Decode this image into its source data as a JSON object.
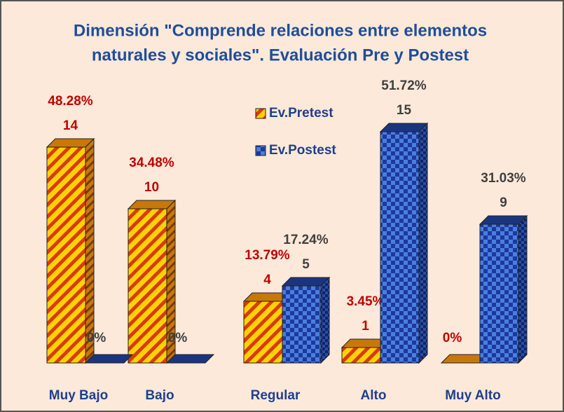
{
  "chart_data": {
    "type": "bar3d",
    "title": [
      "Dimensión \"Comprende relaciones entre elementos",
      "naturales y sociales\". Evaluación  Pre y Postest"
    ],
    "categories": [
      "Muy Bajo",
      "Bajo",
      "Regular",
      "Alto",
      "Muy Alto"
    ],
    "series": [
      {
        "name": "Ev.Pretest",
        "color": "#f5b400",
        "values": [
          14,
          10,
          4,
          1,
          0
        ],
        "percentages": [
          48.28,
          34.48,
          13.79,
          3.45,
          0
        ],
        "percentage_labels": [
          "48.28%",
          "34.48%",
          "13.79%",
          "3.45%",
          "0%"
        ]
      },
      {
        "name": "Ev.Postest",
        "color": "#2a55c0",
        "values": [
          0,
          0,
          5,
          15,
          9
        ],
        "percentages": [
          0,
          0,
          17.24,
          51.72,
          31.03
        ],
        "percentage_labels": [
          "0%",
          "0%",
          "17.24%",
          "51.72%",
          "31.03%"
        ]
      }
    ]
  }
}
